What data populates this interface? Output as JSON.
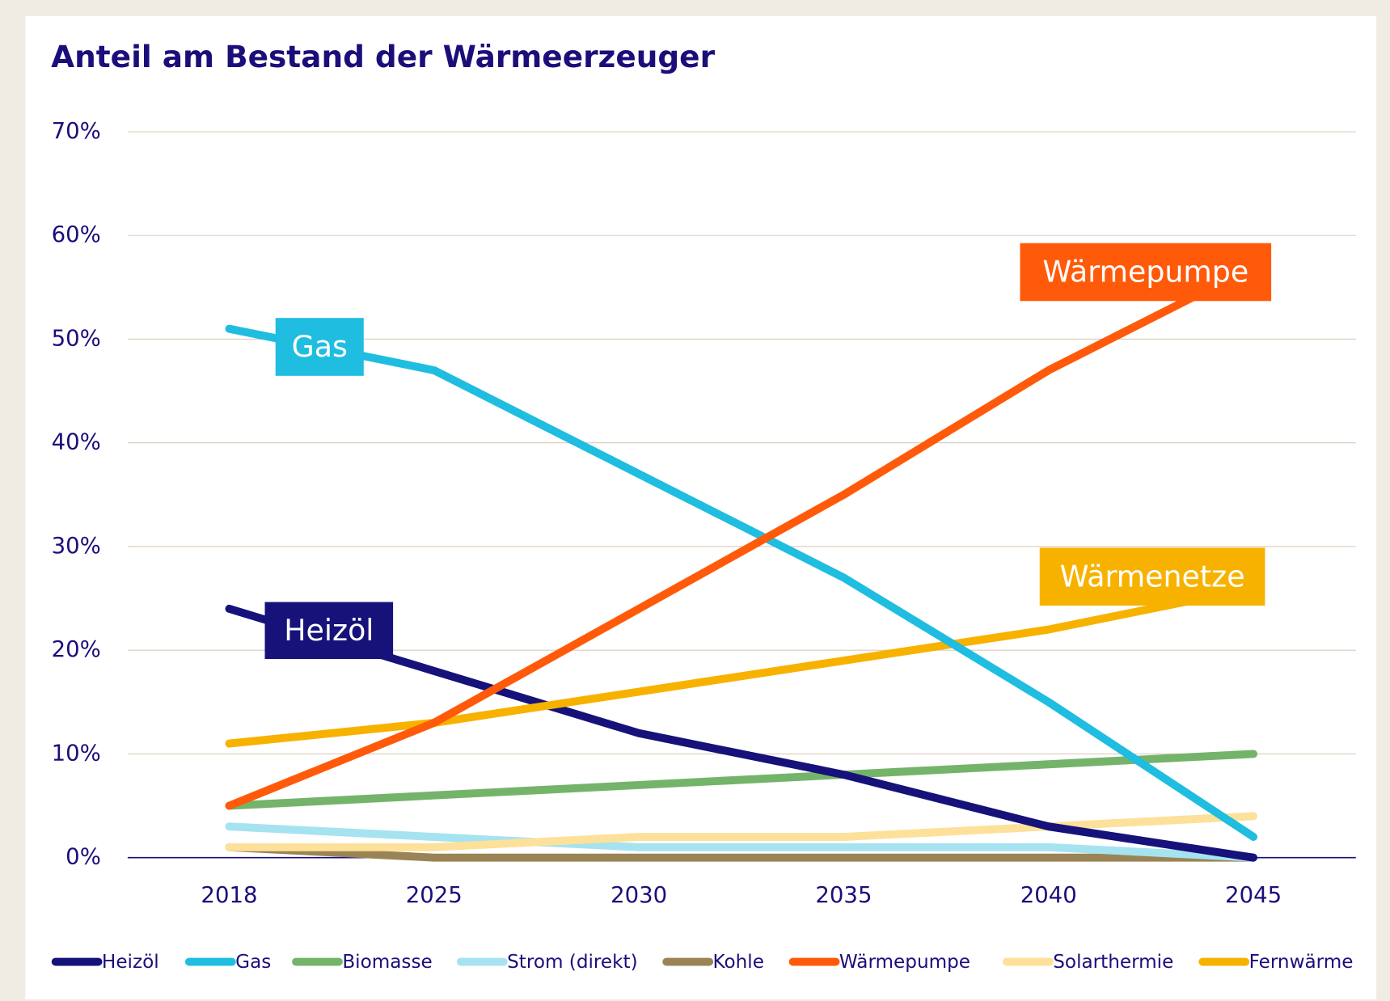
{
  "chart_data": {
    "type": "line",
    "title": "Anteil am Bestand der Wärmeerzeuger",
    "categories": [
      "2018",
      "2025",
      "2030",
      "2035",
      "2040",
      "2045"
    ],
    "series": [
      {
        "name": "Heizöl",
        "color": "#16127a",
        "values": [
          24,
          18,
          12,
          8,
          3,
          0
        ]
      },
      {
        "name": "Gas",
        "color": "#1fbde0",
        "values": [
          51,
          47,
          37,
          27,
          15,
          2
        ]
      },
      {
        "name": "Biomasse",
        "color": "#74b46a",
        "values": [
          5,
          6,
          7,
          8,
          9,
          10
        ]
      },
      {
        "name": "Strom (direkt)",
        "color": "#a6e3f0",
        "values": [
          3,
          2,
          1,
          1,
          1,
          0
        ]
      },
      {
        "name": "Kohle",
        "color": "#9a8455",
        "values": [
          1,
          0,
          0,
          0,
          0,
          0
        ]
      },
      {
        "name": "Wärmepumpe",
        "color": "#ff5a0a",
        "values": [
          5,
          13,
          24,
          35,
          47,
          57
        ]
      },
      {
        "name": "Solarthermie",
        "color": "#fde19a",
        "values": [
          1,
          1,
          2,
          2,
          3,
          4
        ]
      },
      {
        "name": "Fernwärme",
        "color": "#f7b200",
        "values": [
          11,
          13,
          16,
          19,
          22,
          26
        ]
      }
    ],
    "ylim": [
      0,
      70
    ],
    "yticks": [
      {
        "value": 0,
        "label": "0%"
      },
      {
        "value": 10,
        "label": "10%"
      },
      {
        "value": 20,
        "label": "20%"
      },
      {
        "value": 30,
        "label": "30%"
      },
      {
        "value": 40,
        "label": "40%"
      },
      {
        "value": 50,
        "label": "50%"
      },
      {
        "value": 60,
        "label": "60%"
      },
      {
        "value": 70,
        "label": "70%"
      }
    ],
    "grid": true,
    "legend": "bottom",
    "annotations": [
      {
        "text": "Gas",
        "color": "#1fbde0"
      },
      {
        "text": "Heizöl",
        "color": "#16127a"
      },
      {
        "text": "Wärmepumpe",
        "color": "#ff5a0a"
      },
      {
        "text": "Wärmenetze",
        "color": "#f7b200"
      }
    ]
  }
}
